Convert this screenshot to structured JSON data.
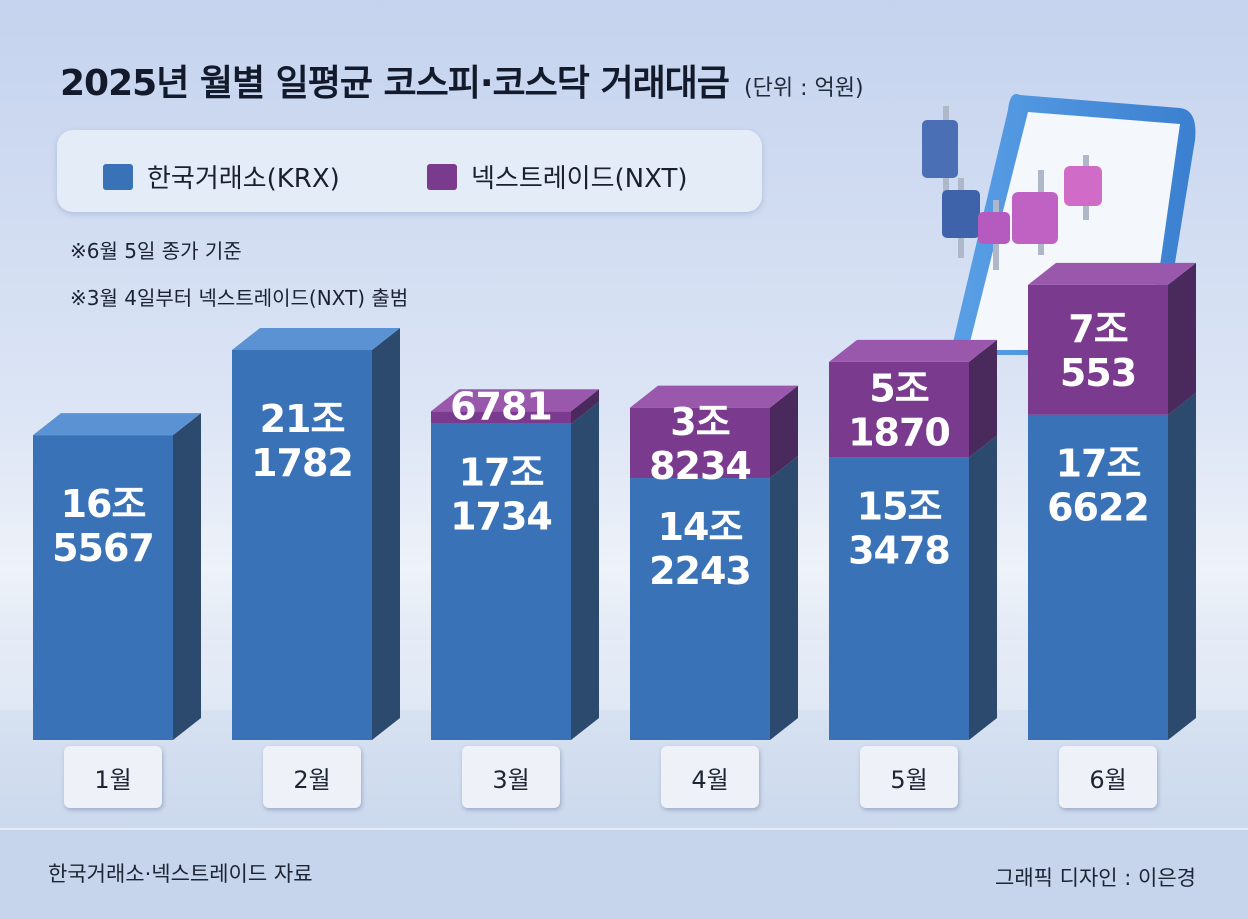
{
  "title": "2025년 월별 일평균 코스피·코스닥 거래대금",
  "unit": "(단위 : 억원)",
  "legend": [
    {
      "label": "한국거래소(KRX)",
      "color": "#3a72b8"
    },
    {
      "label": "넥스트레이드(NXT)",
      "color": "#7a3a8e"
    }
  ],
  "notes": [
    "※6월 5일 종가 기준",
    "※3월 4일부터 넥스트레이드(NXT) 출범"
  ],
  "source": "한국거래소·넥스트레이드 자료",
  "credit": "그래픽 디자인 : 이은경",
  "chart_data": {
    "type": "bar",
    "stacked": true,
    "title": "2025년 월별 일평균 코스피·코스닥 거래대금",
    "unit": "억원",
    "categories": [
      "1월",
      "2월",
      "3월",
      "4월",
      "5월",
      "6월"
    ],
    "series": [
      {
        "name": "한국거래소(KRX)",
        "values": [
          165567,
          211782,
          171734,
          142243,
          153478,
          176622
        ],
        "labels": [
          [
            "16조",
            "5567"
          ],
          [
            "21조",
            "1782"
          ],
          [
            "17조",
            "1734"
          ],
          [
            "14조",
            "2243"
          ],
          [
            "15조",
            "3478"
          ],
          [
            "17조",
            "6622"
          ]
        ]
      },
      {
        "name": "넥스트레이드(NXT)",
        "values": [
          0,
          0,
          6781,
          38234,
          51870,
          70553
        ],
        "labels": [
          [],
          [],
          [
            "6781"
          ],
          [
            "3조",
            "8234"
          ],
          [
            "5조",
            "1870"
          ],
          [
            "7조",
            "553"
          ]
        ]
      }
    ]
  }
}
